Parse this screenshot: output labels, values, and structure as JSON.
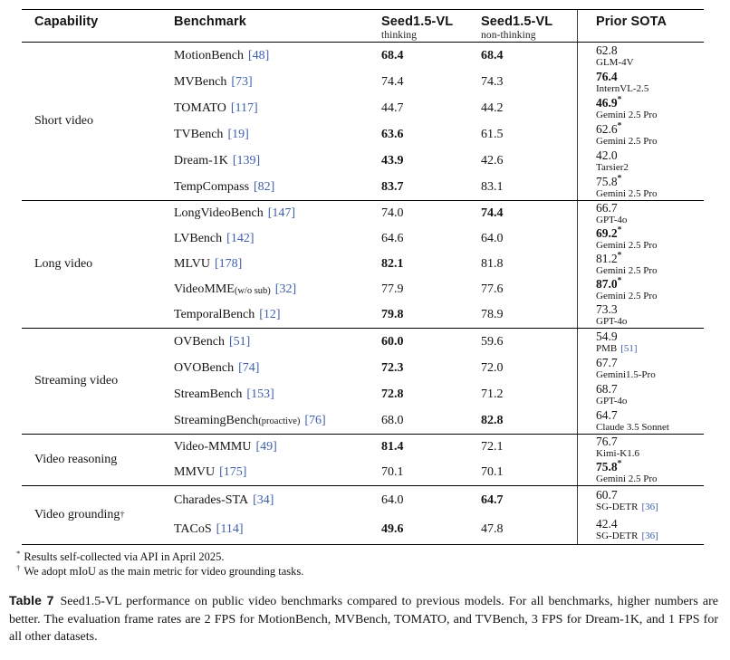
{
  "colors": {
    "citation": "#3e5fac",
    "rule": "#000000",
    "text": "#141414"
  },
  "header": {
    "col_capability": "Capability",
    "col_benchmark": "Benchmark",
    "col_model1": "Seed1.5-VL",
    "col_model1_sub": "thinking",
    "col_model2": "Seed1.5-VL",
    "col_model2_sub": "non-thinking",
    "col_sota": "Prior SOTA"
  },
  "sections": [
    {
      "capability": "Short video",
      "capability_sup": "",
      "rows": [
        {
          "benchmark": "MotionBench",
          "small": "",
          "cite": "[48]",
          "thinking": "68.4",
          "thinking_bold": true,
          "non_thinking": "68.4",
          "non_thinking_bold": true,
          "sota_value": "62.8",
          "sota_bold": false,
          "sota_star": false,
          "sota_model": "GLM-4V",
          "sota_model_cite": ""
        },
        {
          "benchmark": "MVBench",
          "small": "",
          "cite": "[73]",
          "thinking": "74.4",
          "thinking_bold": false,
          "non_thinking": "74.3",
          "non_thinking_bold": false,
          "sota_value": "76.4",
          "sota_bold": true,
          "sota_star": false,
          "sota_model": "InternVL-2.5",
          "sota_model_cite": ""
        },
        {
          "benchmark": "TOMATO",
          "small": "",
          "cite": "[117]",
          "thinking": "44.7",
          "thinking_bold": false,
          "non_thinking": "44.2",
          "non_thinking_bold": false,
          "sota_value": "46.9",
          "sota_bold": true,
          "sota_star": true,
          "sota_model": "Gemini 2.5 Pro",
          "sota_model_cite": ""
        },
        {
          "benchmark": "TVBench",
          "small": "",
          "cite": "[19]",
          "thinking": "63.6",
          "thinking_bold": true,
          "non_thinking": "61.5",
          "non_thinking_bold": false,
          "sota_value": "62.6",
          "sota_bold": false,
          "sota_star": true,
          "sota_model": "Gemini 2.5 Pro",
          "sota_model_cite": ""
        },
        {
          "benchmark": "Dream-1K",
          "small": "",
          "cite": "[139]",
          "thinking": "43.9",
          "thinking_bold": true,
          "non_thinking": "42.6",
          "non_thinking_bold": false,
          "sota_value": "42.0",
          "sota_bold": false,
          "sota_star": false,
          "sota_model": "Tarsier2",
          "sota_model_cite": ""
        },
        {
          "benchmark": "TempCompass",
          "small": "",
          "cite": "[82]",
          "thinking": "83.7",
          "thinking_bold": true,
          "non_thinking": "83.1",
          "non_thinking_bold": false,
          "sota_value": "75.8",
          "sota_bold": false,
          "sota_star": true,
          "sota_model": "Gemini 2.5 Pro",
          "sota_model_cite": ""
        }
      ]
    },
    {
      "capability": "Long video",
      "capability_sup": "",
      "rows": [
        {
          "benchmark": "LongVideoBench",
          "small": "",
          "cite": "[147]",
          "thinking": "74.0",
          "thinking_bold": false,
          "non_thinking": "74.4",
          "non_thinking_bold": true,
          "sota_value": "66.7",
          "sota_bold": false,
          "sota_star": false,
          "sota_model": "GPT-4o",
          "sota_model_cite": ""
        },
        {
          "benchmark": "LVBench",
          "small": "",
          "cite": "[142]",
          "thinking": "64.6",
          "thinking_bold": false,
          "non_thinking": "64.0",
          "non_thinking_bold": false,
          "sota_value": "69.2",
          "sota_bold": true,
          "sota_star": true,
          "sota_model": "Gemini 2.5 Pro",
          "sota_model_cite": ""
        },
        {
          "benchmark": "MLVU",
          "small": "",
          "cite": "[178]",
          "thinking": "82.1",
          "thinking_bold": true,
          "non_thinking": "81.8",
          "non_thinking_bold": false,
          "sota_value": "81.2",
          "sota_bold": false,
          "sota_star": true,
          "sota_model": "Gemini 2.5 Pro",
          "sota_model_cite": ""
        },
        {
          "benchmark": "VideoMME",
          "small": "(w/o sub)",
          "cite": "[32]",
          "thinking": "77.9",
          "thinking_bold": false,
          "non_thinking": "77.6",
          "non_thinking_bold": false,
          "sota_value": "87.0",
          "sota_bold": true,
          "sota_star": true,
          "sota_model": "Gemini 2.5 Pro",
          "sota_model_cite": ""
        },
        {
          "benchmark": "TemporalBench",
          "small": "",
          "cite": "[12]",
          "thinking": "79.8",
          "thinking_bold": true,
          "non_thinking": "78.9",
          "non_thinking_bold": false,
          "sota_value": "73.3",
          "sota_bold": false,
          "sota_star": false,
          "sota_model": "GPT-4o",
          "sota_model_cite": ""
        }
      ]
    },
    {
      "capability": "Streaming video",
      "capability_sup": "",
      "rows": [
        {
          "benchmark": "OVBench",
          "small": "",
          "cite": "[51]",
          "thinking": "60.0",
          "thinking_bold": true,
          "non_thinking": "59.6",
          "non_thinking_bold": false,
          "sota_value": "54.9",
          "sota_bold": false,
          "sota_star": false,
          "sota_model": "PMB",
          "sota_model_cite": "[51]"
        },
        {
          "benchmark": "OVOBench",
          "small": "",
          "cite": "[74]",
          "thinking": "72.3",
          "thinking_bold": true,
          "non_thinking": "72.0",
          "non_thinking_bold": false,
          "sota_value": "67.7",
          "sota_bold": false,
          "sota_star": false,
          "sota_model": "Gemini1.5-Pro",
          "sota_model_cite": ""
        },
        {
          "benchmark": "StreamBench",
          "small": "",
          "cite": "[153]",
          "thinking": "72.8",
          "thinking_bold": true,
          "non_thinking": "71.2",
          "non_thinking_bold": false,
          "sota_value": "68.7",
          "sota_bold": false,
          "sota_star": false,
          "sota_model": "GPT-4o",
          "sota_model_cite": ""
        },
        {
          "benchmark": "StreamingBench",
          "small": "(proactive)",
          "cite": "[76]",
          "thinking": "68.0",
          "thinking_bold": false,
          "non_thinking": "82.8",
          "non_thinking_bold": true,
          "sota_value": "64.7",
          "sota_bold": false,
          "sota_star": false,
          "sota_model": "Claude 3.5 Sonnet",
          "sota_model_cite": ""
        }
      ]
    },
    {
      "capability": "Video reasoning",
      "capability_sup": "",
      "rows": [
        {
          "benchmark": "Video-MMMU",
          "small": "",
          "cite": "[49]",
          "thinking": "81.4",
          "thinking_bold": true,
          "non_thinking": "72.1",
          "non_thinking_bold": false,
          "sota_value": "76.7",
          "sota_bold": false,
          "sota_star": false,
          "sota_model": "Kimi-K1.6",
          "sota_model_cite": ""
        },
        {
          "benchmark": "MMVU",
          "small": "",
          "cite": "[175]",
          "thinking": "70.1",
          "thinking_bold": false,
          "non_thinking": "70.1",
          "non_thinking_bold": false,
          "sota_value": "75.8",
          "sota_bold": true,
          "sota_star": true,
          "sota_model": "Gemini 2.5 Pro",
          "sota_model_cite": ""
        }
      ]
    },
    {
      "capability": "Video grounding",
      "capability_sup": "†",
      "rows": [
        {
          "benchmark": "Charades-STA",
          "small": "",
          "cite": "[34]",
          "thinking": "64.0",
          "thinking_bold": false,
          "non_thinking": "64.7",
          "non_thinking_bold": true,
          "sota_value": "60.7",
          "sota_bold": false,
          "sota_star": false,
          "sota_model": "SG-DETR",
          "sota_model_cite": "[36]"
        },
        {
          "benchmark": "TACoS",
          "small": "",
          "cite": "[114]",
          "thinking": "49.6",
          "thinking_bold": true,
          "non_thinking": "47.8",
          "non_thinking_bold": false,
          "sota_value": "42.4",
          "sota_bold": false,
          "sota_star": false,
          "sota_model": "SG-DETR",
          "sota_model_cite": "[36]"
        }
      ]
    }
  ],
  "footnotes": [
    {
      "marker": "*",
      "text": "Results self-collected via API in April 2025."
    },
    {
      "marker": "†",
      "text": "We adopt mIoU as the main metric for video grounding tasks."
    }
  ],
  "caption": {
    "label": "Table 7",
    "text": "Seed1.5-VL performance on public video benchmarks compared to previous models. For all benchmarks, higher numbers are better. The evaluation frame rates are 2 FPS for MotionBench, MVBench, TOMATO, and TVBench, 3 FPS for Dream-1K, and 1 FPS for all other datasets."
  }
}
